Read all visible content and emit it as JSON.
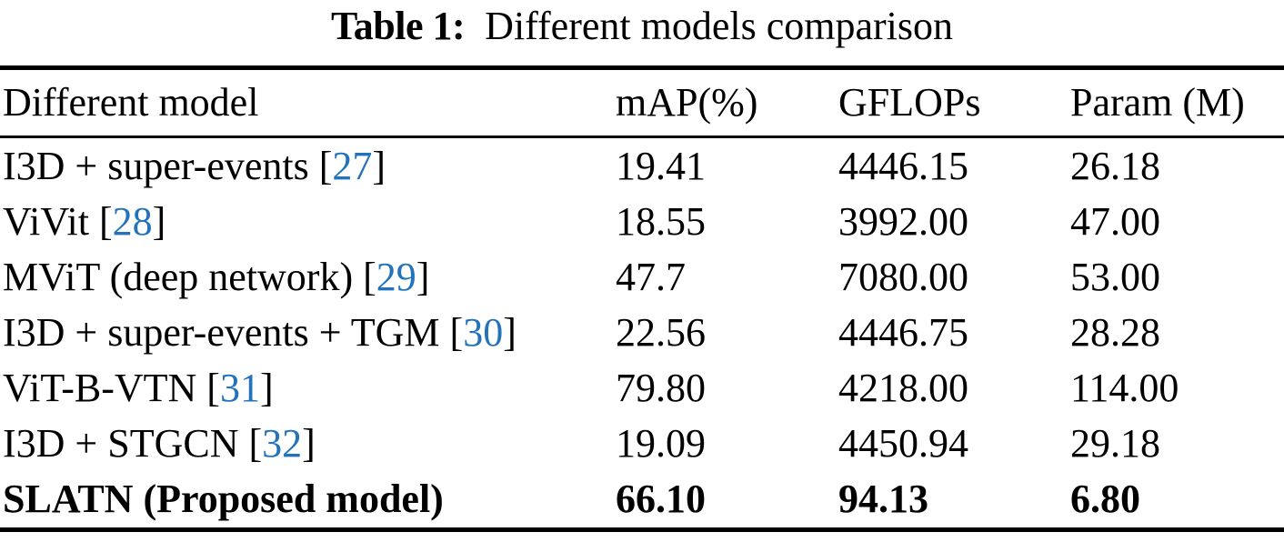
{
  "title": {
    "label": "Table 1:",
    "text": "Different models comparison"
  },
  "colors": {
    "citation_link": "#2273bb",
    "text": "#000000",
    "rule": "#000000"
  },
  "table": {
    "headers": [
      "Different model",
      "mAP(%)",
      "GFLOPs",
      "Param (M)"
    ],
    "rows": [
      {
        "model": "I3D + super-events ",
        "cite_open": "[",
        "cite": "27",
        "cite_close": "]",
        "map": "19.41",
        "gflops": "4446.15",
        "param": "26.18"
      },
      {
        "model": "ViVit ",
        "cite_open": "[",
        "cite": "28",
        "cite_close": "]",
        "map": "18.55",
        "gflops": "3992.00",
        "param": "47.00"
      },
      {
        "model": "MViT (deep network) ",
        "cite_open": "[",
        "cite": "29",
        "cite_close": "]",
        "map": "47.7",
        "gflops": "7080.00",
        "param": "53.00"
      },
      {
        "model": "I3D + super-events + TGM ",
        "cite_open": "[",
        "cite": "30",
        "cite_close": "]",
        "map": "22.56",
        "gflops": "4446.75",
        "param": "28.28"
      },
      {
        "model": "ViT-B-VTN ",
        "cite_open": "[",
        "cite": "31",
        "cite_close": "]",
        "map": "79.80",
        "gflops": "4218.00",
        "param": "114.00"
      },
      {
        "model": "I3D + STGCN ",
        "cite_open": "[",
        "cite": "32",
        "cite_close": "]",
        "map": "19.09",
        "gflops": "4450.94",
        "param": "29.18"
      },
      {
        "model": "SLATN (Proposed model)",
        "cite_open": "",
        "cite": "",
        "cite_close": "",
        "map": "66.10",
        "gflops": "94.13",
        "param": "6.80"
      }
    ]
  }
}
